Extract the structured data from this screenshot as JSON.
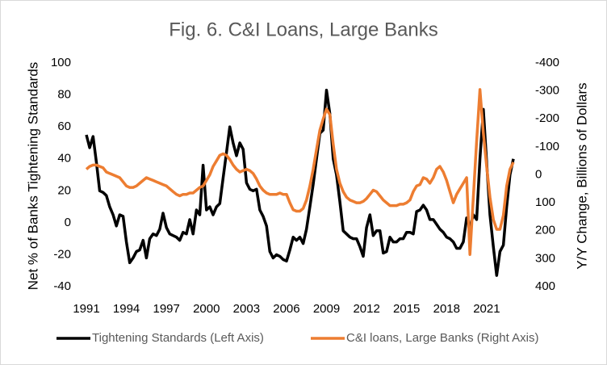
{
  "chart_data": {
    "type": "line",
    "title": "Fig. 6. C&I Loans, Large Banks",
    "y_label": "Net % of Banks Tightening Standards",
    "y2_label": "Y/Y Change, Billions of Dollars",
    "xlim": [
      1991,
      2023.5
    ],
    "xticks": [
      1991,
      1994,
      1997,
      2000,
      2003,
      2006,
      2009,
      2012,
      2015,
      2018,
      2021
    ],
    "ylim": [
      -40,
      100
    ],
    "yticks": [
      -40,
      -20,
      0,
      20,
      40,
      60,
      80,
      100
    ],
    "y2lim": [
      400,
      -400
    ],
    "y2ticks": [
      400,
      300,
      200,
      100,
      0,
      -100,
      -200,
      -300,
      -400
    ],
    "legend": "bottom",
    "x": [
      1991,
      1991.25,
      1991.5,
      1991.75,
      1992,
      1992.25,
      1992.5,
      1992.75,
      1993,
      1993.25,
      1993.5,
      1993.75,
      1994,
      1994.25,
      1994.5,
      1994.75,
      1995,
      1995.25,
      1995.5,
      1995.75,
      1996,
      1996.25,
      1996.5,
      1996.75,
      1997,
      1997.25,
      1997.5,
      1997.75,
      1998,
      1998.25,
      1998.5,
      1998.75,
      1999,
      1999.25,
      1999.5,
      1999.75,
      2000,
      2000.25,
      2000.5,
      2000.75,
      2001,
      2001.25,
      2001.5,
      2001.75,
      2002,
      2002.25,
      2002.5,
      2002.75,
      2003,
      2003.25,
      2003.5,
      2003.75,
      2004,
      2004.25,
      2004.5,
      2004.75,
      2005,
      2005.25,
      2005.5,
      2005.75,
      2006,
      2006.25,
      2006.5,
      2006.75,
      2007,
      2007.25,
      2007.5,
      2007.75,
      2008,
      2008.25,
      2008.5,
      2008.75,
      2009,
      2009.25,
      2009.5,
      2009.75,
      2010,
      2010.25,
      2010.5,
      2010.75,
      2011,
      2011.25,
      2011.5,
      2011.75,
      2012,
      2012.25,
      2012.5,
      2012.75,
      2013,
      2013.25,
      2013.5,
      2013.75,
      2014,
      2014.25,
      2014.5,
      2014.75,
      2015,
      2015.25,
      2015.5,
      2015.75,
      2016,
      2016.25,
      2016.5,
      2016.75,
      2017,
      2017.25,
      2017.5,
      2017.75,
      2018,
      2018.25,
      2018.5,
      2018.75,
      2019,
      2019.25,
      2019.5,
      2019.75,
      2020,
      2020.25,
      2020.5,
      2020.75,
      2021,
      2021.25,
      2021.5,
      2021.75,
      2022,
      2022.25,
      2022.5,
      2022.75,
      2023
    ],
    "series": [
      {
        "name": "Tightening Standards (Left Axis)",
        "color": "#000000",
        "axis": "y",
        "values": [
          55,
          47,
          54,
          38,
          20,
          19,
          17,
          10,
          5,
          -2,
          5,
          4,
          -12,
          -25,
          -22,
          -18,
          -17,
          -11,
          -22,
          -10,
          -7,
          -8,
          -4,
          6,
          -3,
          -7,
          -8,
          -9,
          -11,
          -6,
          -7,
          2,
          -7,
          8,
          5,
          36,
          8,
          10,
          5,
          10,
          12,
          28,
          44,
          60,
          50,
          42,
          50,
          46,
          25,
          21,
          20,
          21,
          8,
          4,
          -2,
          -18,
          -22,
          -20,
          -21,
          -23,
          -24,
          -17,
          -9,
          -11,
          -9,
          -13,
          -4,
          10,
          24,
          40,
          56,
          58,
          83,
          68,
          40,
          30,
          13,
          -5,
          -7,
          -9,
          -10,
          -10,
          -15,
          -21,
          -3,
          5,
          -8,
          -5,
          -5,
          -19,
          -18,
          -9,
          -12,
          -12,
          -10,
          -10,
          -6,
          -6,
          -7,
          7,
          8,
          11,
          8,
          2,
          2,
          -1,
          -4,
          -6,
          -9,
          -10,
          -12,
          -16,
          -16,
          -12,
          3,
          -3,
          5,
          2,
          40,
          71,
          38,
          5,
          -15,
          -33,
          -18,
          -14,
          10,
          30,
          40
        ]
      },
      {
        "name": "C&I loans, Large Banks (Right Axis)",
        "color": "#ed7d31",
        "axis": "y2",
        "values": [
          -20,
          -30,
          -35,
          -35,
          -30,
          -25,
          -10,
          -5,
          0,
          5,
          10,
          25,
          40,
          45,
          45,
          40,
          30,
          20,
          10,
          15,
          20,
          25,
          30,
          35,
          40,
          50,
          60,
          70,
          75,
          70,
          70,
          65,
          65,
          55,
          45,
          40,
          20,
          0,
          -30,
          -50,
          -70,
          -75,
          -70,
          -55,
          -35,
          -20,
          -10,
          -15,
          -20,
          -15,
          -5,
          15,
          40,
          55,
          65,
          70,
          70,
          70,
          65,
          70,
          70,
          100,
          125,
          130,
          130,
          120,
          90,
          40,
          -20,
          -90,
          -160,
          -200,
          -235,
          -215,
          -110,
          -20,
          30,
          60,
          80,
          90,
          95,
          100,
          100,
          95,
          85,
          70,
          55,
          60,
          75,
          90,
          100,
          110,
          110,
          110,
          105,
          105,
          100,
          90,
          60,
          40,
          35,
          10,
          15,
          30,
          10,
          -20,
          -30,
          -10,
          20,
          60,
          100,
          70,
          50,
          30,
          10,
          285,
          80,
          -120,
          -305,
          -150,
          -30,
          80,
          160,
          195,
          195,
          145,
          40,
          -20,
          -45
        ]
      }
    ]
  }
}
